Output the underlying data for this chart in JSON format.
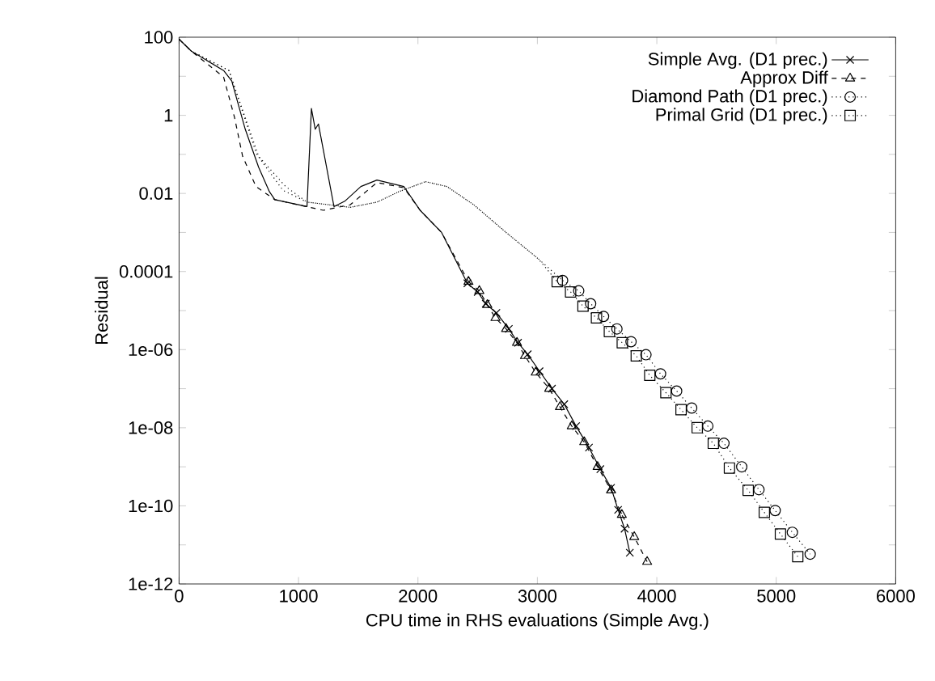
{
  "chart_data": {
    "type": "line",
    "xlabel": "CPU time in RHS evaluations (Simple Avg.)",
    "ylabel": "Residual",
    "log": "y",
    "xlim": [
      0,
      6000
    ],
    "xticks": [
      0,
      1000,
      2000,
      3000,
      4000,
      5000,
      6000
    ],
    "ylim": [
      1e-12,
      100
    ],
    "yticks": [
      {
        "value": 100,
        "label": "100"
      },
      {
        "value": 10,
        "label": null
      },
      {
        "value": 1,
        "label": "1"
      },
      {
        "value": 0.1,
        "label": null
      },
      {
        "value": 0.01,
        "label": "0.01"
      },
      {
        "value": 0.001,
        "label": null
      },
      {
        "value": 0.0001,
        "label": "0.0001"
      },
      {
        "value": 1e-05,
        "label": null
      },
      {
        "value": 1e-06,
        "label": "1e-06"
      },
      {
        "value": 1e-07,
        "label": null
      },
      {
        "value": 1e-08,
        "label": "1e-08"
      },
      {
        "value": 1e-09,
        "label": null
      },
      {
        "value": 1e-10,
        "label": "1e-10"
      },
      {
        "value": 1e-11,
        "label": null
      },
      {
        "value": 1e-12,
        "label": "1e-12"
      }
    ],
    "grid": false,
    "legend": "top right",
    "series": [
      {
        "color": "#000000",
        "line_style": "solid",
        "marker": "none",
        "x": [
          0,
          103,
          373,
          441,
          554,
          666,
          757,
          802,
          1071,
          1108,
          1140,
          1167,
          1297,
          1387,
          1522,
          1657,
          1882,
          2018,
          2198,
          2414
        ],
        "values": [
          89,
          44,
          14,
          7.6,
          0.44,
          0.047,
          0.011,
          0.0069,
          0.0046,
          1.5,
          0.44,
          0.6,
          0.0046,
          0.0063,
          0.015,
          0.022,
          0.015,
          0.0037,
          0.001,
          5e-05
        ]
      },
      {
        "color": "#000000",
        "line_style": "dashed",
        "marker": "none",
        "x": [
          0,
          103,
          373,
          464,
          532,
          644,
          802,
          1207,
          1432,
          1657,
          1882,
          2018,
          2198,
          2423
        ],
        "values": [
          89,
          44,
          9.5,
          0.89,
          0.089,
          0.015,
          0.0069,
          0.0037,
          0.0051,
          0.019,
          0.014,
          0.0037,
          0.001,
          5.5e-05
        ]
      },
      {
        "color": "#000000",
        "line_style": "dotted",
        "marker": "none",
        "x": [
          0,
          103,
          418,
          666,
          892,
          1071,
          1432,
          1657,
          1837,
          2063,
          2243,
          2468,
          2738,
          3009,
          3211
        ],
        "values": [
          89,
          44,
          14,
          0.089,
          0.015,
          0.006,
          0.0044,
          0.006,
          0.011,
          0.02,
          0.015,
          0.0051,
          0.001,
          0.00021,
          5.9e-05
        ]
      },
      {
        "color": "#000000",
        "line_style": "dotted",
        "marker": "none",
        "x": [
          0,
          103,
          418,
          650,
          870,
          1071,
          1432,
          1657,
          1837,
          2063,
          2243,
          2468,
          2738,
          3009,
          3166
        ],
        "values": [
          89,
          44,
          14,
          0.1,
          0.012,
          0.006,
          0.0044,
          0.006,
          0.011,
          0.02,
          0.015,
          0.0051,
          0.001,
          0.00021,
          5.5e-05
        ]
      },
      {
        "name": "Simple Avg. (D1 prec.)",
        "color": "#000000",
        "line_style": "solid",
        "marker": "cross",
        "x": [
          2414,
          2500,
          2568,
          2657,
          2761,
          2838,
          2919,
          3018,
          3122,
          3225,
          3324,
          3432,
          3527,
          3617,
          3676,
          3730,
          3774
        ],
        "values": [
          5e-05,
          3e-05,
          1.5e-05,
          8.7e-06,
          3.4e-06,
          1.5e-06,
          7.6e-07,
          2.8e-07,
          1e-07,
          4e-08,
          1.1e-08,
          3.1e-09,
          8.7e-10,
          2.9e-10,
          7.9e-11,
          2.6e-11,
          6.3e-12
        ]
      },
      {
        "name": "Approx Diff",
        "color": "#000000",
        "line_style": "dashed",
        "marker": "triangle",
        "x": [
          2423,
          2514,
          2581,
          2649,
          2738,
          2829,
          2896,
          2986,
          3099,
          3189,
          3288,
          3392,
          3504,
          3617,
          3707,
          3811,
          3919
        ],
        "values": [
          5.5e-05,
          3.2e-05,
          1.4e-05,
          6.5e-06,
          3.4e-06,
          1.5e-06,
          6.9e-07,
          2.6e-07,
          1e-07,
          3.4e-08,
          1.1e-08,
          4.3e-09,
          1e-09,
          2.5e-10,
          5.9e-11,
          1.6e-11,
          3.7e-12
        ]
      },
      {
        "name": "Diamond Path (D1 prec.)",
        "color": "#000000",
        "line_style": "dotted",
        "marker": "circle",
        "x": [
          3211,
          3346,
          3446,
          3554,
          3666,
          3784,
          3909,
          4031,
          4166,
          4292,
          4427,
          4562,
          4711,
          4855,
          4991,
          5135,
          5284
        ],
        "values": [
          5.9e-05,
          3.2e-05,
          1.5e-05,
          7.1e-06,
          3.4e-06,
          1.6e-06,
          7.4e-07,
          2.4e-07,
          8.7e-08,
          3.2e-08,
          1.1e-08,
          4e-09,
          1e-09,
          2.6e-10,
          7.6e-11,
          2.1e-11,
          5.8e-12
        ]
      },
      {
        "name": "Primal Grid (D1 prec.)",
        "color": "#000000",
        "line_style": "dotted",
        "marker": "square",
        "x": [
          3166,
          3278,
          3382,
          3495,
          3603,
          3711,
          3828,
          3941,
          4076,
          4203,
          4338,
          4473,
          4608,
          4765,
          4900,
          5035,
          5180
        ],
        "values": [
          5.5e-05,
          3e-05,
          1.3e-05,
          6.5e-06,
          2.9e-06,
          1.5e-06,
          6.9e-07,
          2.2e-07,
          7.9e-08,
          2.9e-08,
          1e-08,
          4e-09,
          9.3e-10,
          2.5e-10,
          6.8e-11,
          1.9e-11,
          5e-12
        ]
      }
    ]
  }
}
